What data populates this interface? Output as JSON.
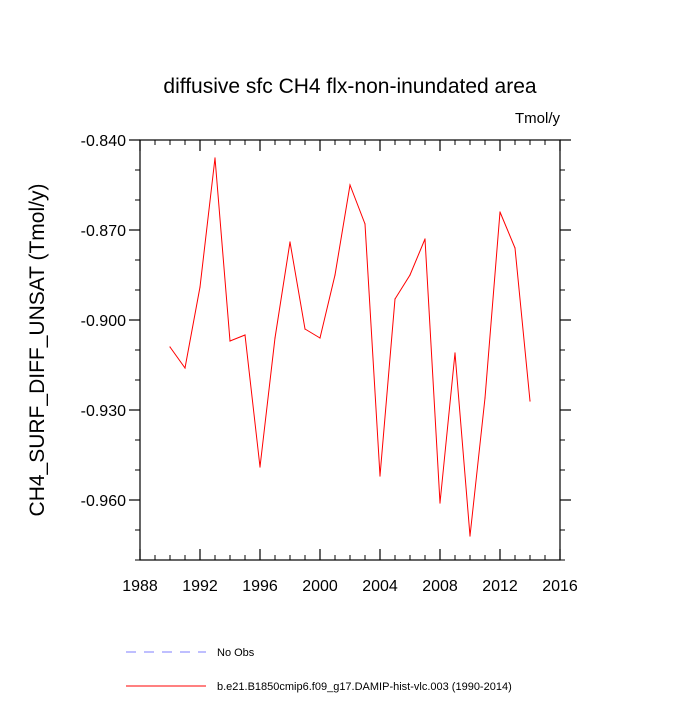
{
  "chart_data": {
    "type": "line",
    "title": "diffusive sfc CH4 flx-non-inundated area",
    "units": "Tmol/y",
    "xlabel": "",
    "ylabel": "CH4_SURF_DIFF_UNSAT  (Tmol/y)",
    "xlim": [
      1988,
      2016
    ],
    "ylim": [
      -0.98,
      -0.84
    ],
    "x_ticks": [
      1988,
      1992,
      1996,
      2000,
      2004,
      2008,
      2012,
      2016
    ],
    "x_minor_step": 1,
    "y_ticks": [
      -0.96,
      -0.93,
      -0.9,
      -0.87,
      -0.84
    ],
    "y_tick_labels": [
      "-0.960",
      "-0.930",
      "-0.900",
      "-0.870",
      "-0.840"
    ],
    "y_minor_step": 0.01,
    "series": [
      {
        "name": "b.e21.B1850cmip6.f09_g17.DAMIP-hist-vlc.003 (1990-2014)",
        "color": "#ff0000",
        "style": "solid",
        "x": [
          1990,
          1991,
          1992,
          1993,
          1994,
          1995,
          1996,
          1997,
          1998,
          1999,
          2000,
          2001,
          2002,
          2003,
          2004,
          2005,
          2006,
          2007,
          2008,
          2009,
          2010,
          2011,
          2012,
          2013,
          2014
        ],
        "values": [
          -0.909,
          -0.916,
          -0.889,
          -0.846,
          -0.907,
          -0.905,
          -0.949,
          -0.906,
          -0.874,
          -0.903,
          -0.906,
          -0.885,
          -0.855,
          -0.868,
          -0.952,
          -0.893,
          -0.885,
          -0.873,
          -0.961,
          -0.911,
          -0.972,
          -0.926,
          -0.864,
          -0.876,
          -0.927
        ]
      }
    ],
    "legend": [
      {
        "label": "No Obs",
        "color": "#7f7fff",
        "style": "dashed"
      },
      {
        "label": "b.e21.B1850cmip6.f09_g17.DAMIP-hist-vlc.003 (1990-2014)",
        "color": "#ff0000",
        "style": "solid"
      }
    ],
    "legend_position": "bottom"
  }
}
